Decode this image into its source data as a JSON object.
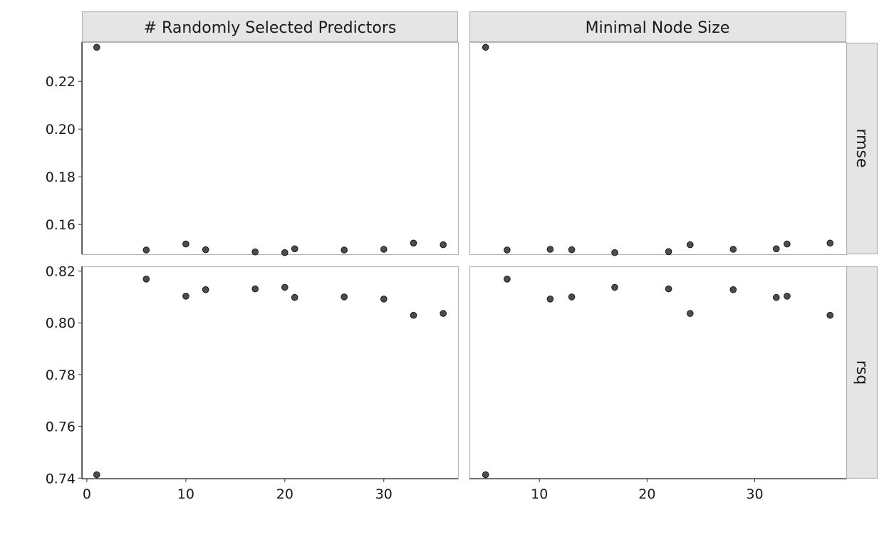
{
  "chart_data": {
    "type": "scatter",
    "facets": {
      "columns": [
        "# Randomly Selected Predictors",
        "Minimal Node Size"
      ],
      "rows": [
        "rmse",
        "rsq"
      ]
    },
    "x_axes": [
      {
        "range": [
          -0.5,
          37.5
        ],
        "ticks": [
          0,
          10,
          20,
          30
        ]
      },
      {
        "range": [
          3.5,
          38.5
        ],
        "ticks": [
          10,
          20,
          30
        ]
      }
    ],
    "y_axes": [
      {
        "range": [
          0.1475,
          0.2365
        ],
        "ticks": [
          0.16,
          0.18,
          0.2,
          0.22
        ],
        "tick_labels": [
          "0.16",
          "0.18",
          "0.20",
          "0.22"
        ]
      },
      {
        "range": [
          0.7398,
          0.8218
        ],
        "ticks": [
          0.74,
          0.76,
          0.78,
          0.8,
          0.82
        ],
        "tick_labels": [
          "0.74",
          "0.76",
          "0.78",
          "0.80",
          "0.82"
        ]
      }
    ],
    "panels": [
      {
        "column": "# Randomly Selected Predictors",
        "row": "rmse",
        "x": [
          1,
          6,
          10,
          12,
          17,
          20,
          21,
          26,
          30,
          33,
          36
        ],
        "y": [
          0.2343,
          0.1493,
          0.1518,
          0.1494,
          0.1485,
          0.1482,
          0.1498,
          0.1493,
          0.1496,
          0.1522,
          0.1515
        ]
      },
      {
        "column": "Minimal Node Size",
        "row": "rmse",
        "x": [
          5,
          7,
          11,
          13,
          17,
          22,
          24,
          28,
          32,
          33,
          37
        ],
        "y": [
          0.2343,
          0.1493,
          0.1496,
          0.1494,
          0.1482,
          0.1486,
          0.1515,
          0.1496,
          0.1498,
          0.1518,
          0.1522
        ]
      },
      {
        "column": "# Randomly Selected Predictors",
        "row": "rsq",
        "x": [
          1,
          6,
          10,
          12,
          17,
          20,
          21,
          26,
          30,
          33,
          36
        ],
        "y": [
          0.7413,
          0.8169,
          0.8103,
          0.8128,
          0.8131,
          0.8137,
          0.8098,
          0.81,
          0.8092,
          0.8029,
          0.8036
        ]
      },
      {
        "column": "Minimal Node Size",
        "row": "rsq",
        "x": [
          5,
          7,
          11,
          13,
          17,
          22,
          24,
          28,
          32,
          33,
          37
        ],
        "y": [
          0.7413,
          0.8169,
          0.8092,
          0.81,
          0.8137,
          0.8131,
          0.8036,
          0.8128,
          0.8098,
          0.8103,
          0.8029
        ]
      }
    ],
    "grid": false,
    "legend": "none"
  }
}
